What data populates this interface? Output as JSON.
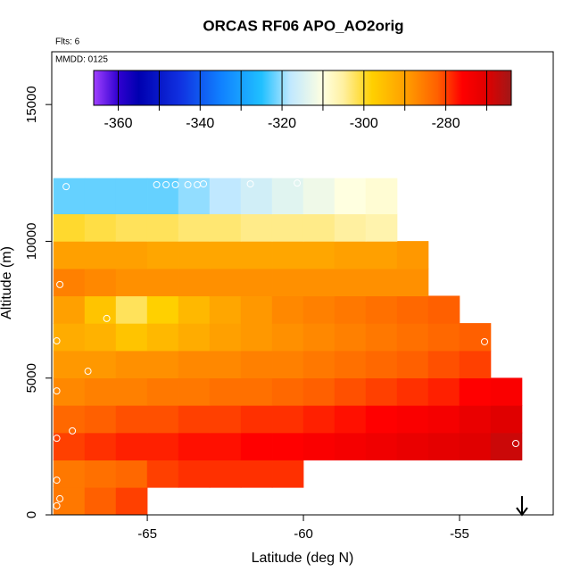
{
  "chart_data": {
    "type": "heatmap",
    "title": "ORCAS RF06 APO_AO2orig",
    "annotations": [
      "Flts: 6",
      "MMDD: 0125"
    ],
    "x_label": "Latitude (deg N)",
    "y_label": "Altitude (m)",
    "xlim": [
      -68.06,
      -52
    ],
    "ylim": [
      0,
      16930
    ],
    "xticks": [
      -65,
      -60,
      -55
    ],
    "yticks": [
      0,
      5000,
      10000,
      15000
    ],
    "x_edges": [
      -68,
      -67,
      -66,
      -65,
      -64,
      -63,
      -62,
      -61,
      -60,
      -59,
      -58,
      -57,
      -56,
      -55,
      -54,
      -53
    ],
    "y_edges": [
      0,
      1000,
      2000,
      3000,
      4000,
      5000,
      6000,
      7000,
      8000,
      9000,
      10000,
      11000,
      12300
    ],
    "values": [
      [
        -285,
        -282,
        -280,
        null,
        null,
        null,
        null,
        null,
        null,
        null,
        null,
        null,
        null,
        null,
        null
      ],
      [
        -285,
        -284,
        -283,
        -280,
        -279,
        -279,
        -279,
        -279,
        null,
        null,
        null,
        null,
        null,
        null,
        null
      ],
      [
        -280,
        -279,
        -278,
        -278,
        -277,
        -277,
        -276,
        -276,
        -275,
        -274,
        -273,
        -272,
        -271,
        -270,
        -268
      ],
      [
        -283,
        -282,
        -281,
        -281,
        -280,
        -280,
        -279,
        -279,
        -278,
        -277,
        -276,
        -275,
        -274,
        -272,
        -270
      ],
      [
        -287,
        -286,
        -286,
        -285,
        -285,
        -284,
        -284,
        -283,
        -282,
        -281,
        -280,
        -279,
        -278,
        -276,
        -275
      ],
      [
        -289,
        -289,
        -288,
        -288,
        -287,
        -287,
        -286,
        -286,
        -285,
        -284,
        -283,
        -282,
        -281,
        -280,
        null
      ],
      [
        -292,
        -293,
        -296,
        -294,
        -292,
        -290,
        -289,
        -288,
        -287,
        -286,
        -285,
        -284,
        -283,
        -282,
        null
      ],
      [
        -290,
        -296,
        -302,
        -298,
        -294,
        -291,
        -289,
        -287,
        -286,
        -285,
        -284,
        -283,
        -282,
        null,
        null
      ],
      [
        -286,
        -287,
        -288,
        -288,
        -288,
        -288,
        -288,
        -288,
        -288,
        -288,
        -288,
        -288,
        null,
        null,
        null
      ],
      [
        -290,
        -290,
        -290,
        -291,
        -291,
        -291,
        -291,
        -291,
        -291,
        -290,
        -290,
        -289,
        null,
        null,
        null
      ],
      [
        -300,
        -301,
        -302,
        -302,
        -303,
        -303,
        -304,
        -304,
        -304,
        -305,
        -306,
        null,
        null,
        null,
        null
      ],
      [
        -322,
        -322,
        -322,
        -322,
        -320,
        -318,
        -316,
        -314,
        -312,
        -310,
        -309,
        null,
        null,
        null,
        null
      ]
    ],
    "colorbar": {
      "lim": [
        -366,
        -264
      ],
      "ticks": [
        -360,
        -340,
        -320,
        -300,
        -280
      ],
      "breaks": [
        -360,
        -350,
        -340,
        -330,
        -320,
        -310,
        -300,
        -290,
        -280,
        -270
      ],
      "stops": [
        [
          -366,
          "#a040ff"
        ],
        [
          -360,
          "#3000d0"
        ],
        [
          -355,
          "#0000b0"
        ],
        [
          -345,
          "#1030e0"
        ],
        [
          -335,
          "#1080ff"
        ],
        [
          -325,
          "#20c0ff"
        ],
        [
          -318,
          "#c0e8ff"
        ],
        [
          -310,
          "#ffffe0"
        ],
        [
          -305,
          "#fff0a0"
        ],
        [
          -298,
          "#ffd000"
        ],
        [
          -290,
          "#ffa000"
        ],
        [
          -282,
          "#ff6000"
        ],
        [
          -276,
          "#ff0000"
        ],
        [
          -270,
          "#e00000"
        ],
        [
          -264,
          "#a01818"
        ]
      ]
    },
    "points": {
      "color": "#ffffff",
      "x": [
        -67.6,
        -64.7,
        -64.4,
        -64.1,
        -63.7,
        -63.4,
        -63.2,
        -61.7,
        -60.2,
        -67.8,
        -66.3,
        -67.9,
        -66.9,
        -67.9,
        -67.4,
        -67.9,
        -67.9,
        -67.8,
        -67.9,
        -53.2,
        -54.2
      ],
      "y": [
        12000,
        12070,
        12070,
        12070,
        12070,
        12070,
        12100,
        12100,
        12130,
        8420,
        7180,
        6360,
        5250,
        4530,
        3070,
        2800,
        1270,
        590,
        330,
        2610,
        6330
      ]
    }
  }
}
